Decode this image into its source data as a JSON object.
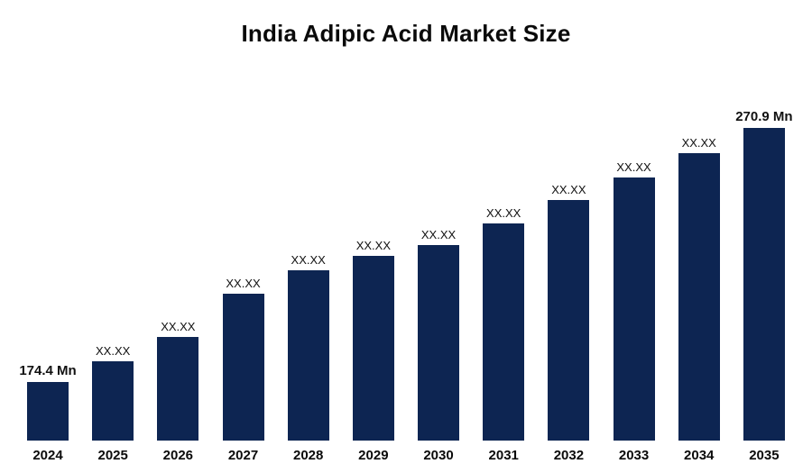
{
  "chart_data": {
    "type": "bar",
    "title": "India Adipic Acid Market Size",
    "categories": [
      "2024",
      "2025",
      "2026",
      "2027",
      "2028",
      "2029",
      "2030",
      "2031",
      "2032",
      "2033",
      "2034",
      "2035"
    ],
    "values": [
      174.4,
      182.0,
      191.5,
      208.0,
      216.8,
      222.3,
      226.5,
      234.6,
      243.5,
      252.0,
      261.3,
      270.9
    ],
    "value_labels": [
      "174.4 Mn",
      "XX.XX",
      "XX.XX",
      "XX.XX",
      "XX.XX",
      "XX.XX",
      "XX.XX",
      "XX.XX",
      "XX.XX",
      "XX.XX",
      "XX.XX",
      "270.9 Mn"
    ],
    "known_value_indexes": [
      0,
      11
    ],
    "xlabel": "",
    "ylabel": "",
    "ylim": [
      152,
      270.9
    ],
    "grid": "off",
    "legend": "none",
    "bar_color": "#0d2552",
    "label_color": "#111111",
    "title_color": "#0a0a0a"
  }
}
